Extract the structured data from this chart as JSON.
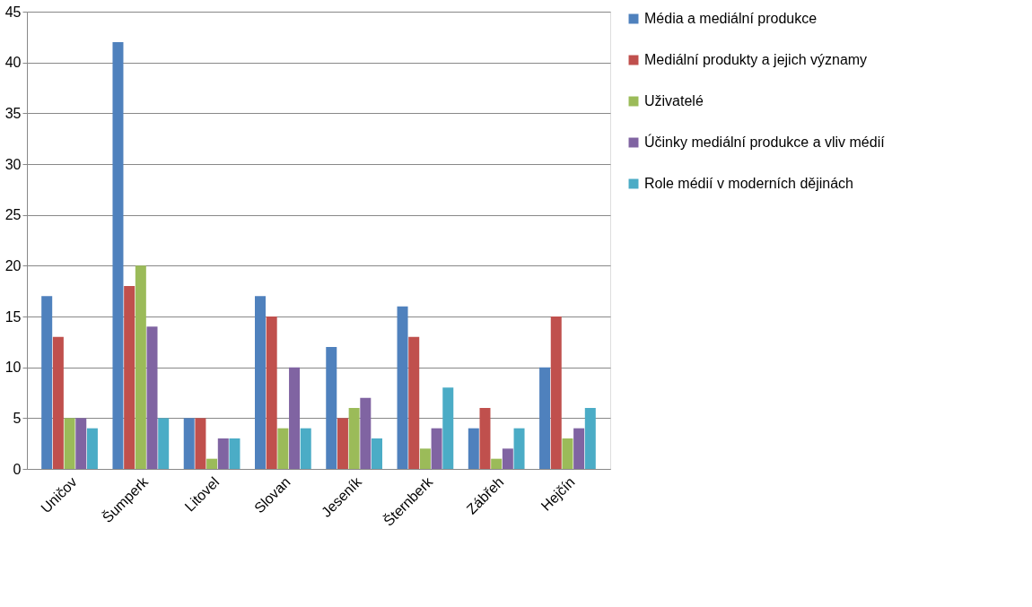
{
  "chart_data": {
    "type": "bar",
    "categories": [
      "Uničov",
      "Šumperk",
      "Litovel",
      "Slovan",
      "Jeseník",
      "Šternberk",
      "Zábřeh",
      "Hejčín"
    ],
    "series": [
      {
        "name": "Média a mediální produkce",
        "color": "#4f81bd",
        "values": [
          17,
          42,
          5,
          17,
          12,
          16,
          4,
          10
        ]
      },
      {
        "name": "Mediální produkty a jejich významy",
        "color": "#c0504d",
        "values": [
          13,
          18,
          5,
          15,
          5,
          13,
          6,
          15
        ]
      },
      {
        "name": "Uživatelé",
        "color": "#9bbb59",
        "values": [
          5,
          20,
          1,
          4,
          6,
          2,
          1,
          3
        ]
      },
      {
        "name": "Účinky mediální produkce a vliv médií",
        "color": "#8064a2",
        "values": [
          5,
          14,
          3,
          10,
          7,
          4,
          2,
          4
        ]
      },
      {
        "name": "Role médií v moderních dějinách",
        "color": "#4bacc6",
        "values": [
          4,
          5,
          3,
          4,
          3,
          8,
          4,
          6
        ]
      }
    ],
    "ylim": [
      0,
      45
    ],
    "yticks": [
      0,
      5,
      10,
      15,
      20,
      25,
      30,
      35,
      40,
      45
    ],
    "grid": "y",
    "legend": "right"
  }
}
